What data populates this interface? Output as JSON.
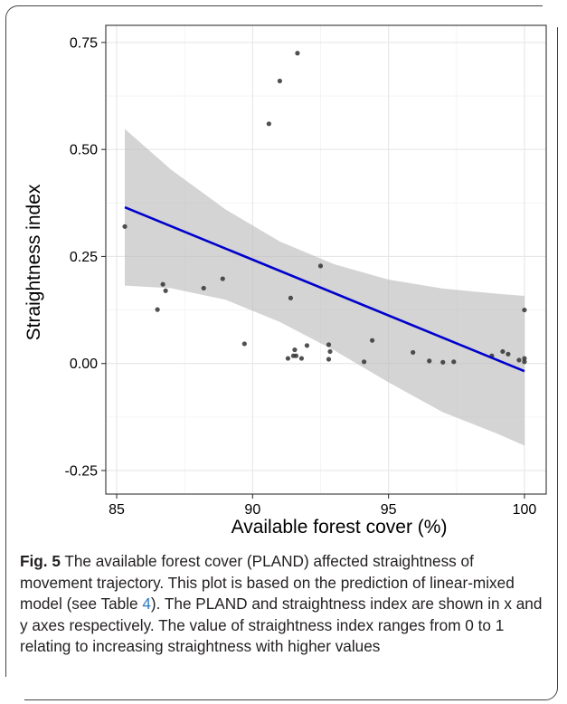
{
  "chart_data": {
    "type": "scatter",
    "xlabel": "Available forest cover (%)",
    "ylabel": "Straightness index",
    "xlim": [
      84.6,
      100.8
    ],
    "ylim": [
      -0.305,
      0.79
    ],
    "x_ticks": [
      85,
      90,
      95,
      100
    ],
    "x_tick_labels": [
      "85",
      "90",
      "95",
      "100"
    ],
    "y_ticks": [
      -0.25,
      0,
      0.25,
      0.5,
      0.75
    ],
    "y_tick_labels": [
      "-0.25",
      "0.00",
      "0.25",
      "0.50",
      "0.75"
    ],
    "grid": true,
    "background": "#ffffff",
    "points": [
      {
        "x": 85.3,
        "y": 0.32
      },
      {
        "x": 86.5,
        "y": 0.126
      },
      {
        "x": 86.7,
        "y": 0.185
      },
      {
        "x": 86.8,
        "y": 0.17
      },
      {
        "x": 88.2,
        "y": 0.176
      },
      {
        "x": 88.9,
        "y": 0.198
      },
      {
        "x": 89.7,
        "y": 0.046
      },
      {
        "x": 90.6,
        "y": 0.56
      },
      {
        "x": 91.0,
        "y": 0.66
      },
      {
        "x": 91.3,
        "y": 0.012
      },
      {
        "x": 91.4,
        "y": 0.153
      },
      {
        "x": 91.5,
        "y": 0.018
      },
      {
        "x": 91.55,
        "y": 0.032
      },
      {
        "x": 91.6,
        "y": 0.018
      },
      {
        "x": 91.65,
        "y": 0.725
      },
      {
        "x": 91.8,
        "y": 0.012
      },
      {
        "x": 92.0,
        "y": 0.042
      },
      {
        "x": 92.5,
        "y": 0.228
      },
      {
        "x": 92.8,
        "y": 0.044
      },
      {
        "x": 92.8,
        "y": 0.01
      },
      {
        "x": 92.85,
        "y": 0.028
      },
      {
        "x": 94.1,
        "y": 0.004
      },
      {
        "x": 94.4,
        "y": 0.054
      },
      {
        "x": 95.9,
        "y": 0.026
      },
      {
        "x": 96.5,
        "y": 0.006
      },
      {
        "x": 97.0,
        "y": 0.003
      },
      {
        "x": 97.4,
        "y": 0.004
      },
      {
        "x": 98.8,
        "y": 0.018
      },
      {
        "x": 99.2,
        "y": 0.028
      },
      {
        "x": 99.4,
        "y": 0.022
      },
      {
        "x": 99.8,
        "y": 0.008
      },
      {
        "x": 100.0,
        "y": 0.125
      },
      {
        "x": 100.0,
        "y": 0.012
      },
      {
        "x": 100.0,
        "y": 0.004
      }
    ],
    "fit_line": {
      "x": [
        85.3,
        100.0
      ],
      "y": [
        0.365,
        -0.018
      ],
      "color": "#0000cc"
    },
    "confidence_band": {
      "x": [
        85.3,
        87,
        89,
        91,
        93,
        95,
        97,
        99,
        100
      ],
      "upper": [
        0.548,
        0.453,
        0.36,
        0.285,
        0.232,
        0.196,
        0.175,
        0.163,
        0.158
      ],
      "lower": [
        0.182,
        0.176,
        0.149,
        0.097,
        0.031,
        -0.044,
        -0.114,
        -0.164,
        -0.192
      ],
      "color": "#bdbdbd"
    },
    "point_color": "#333333"
  },
  "caption": {
    "fig_label": "Fig. 5",
    "text_before_link": "  The available forest cover (PLAND) affected straightness of movement trajectory. This plot is based on the prediction of linear-mixed model (see Table ",
    "link_text": "4",
    "text_after_link": "). The PLAND and straightness index are shown in x and y axes respectively. The value of straightness index ranges from 0 to 1 relating to increasing straightness with higher values"
  }
}
